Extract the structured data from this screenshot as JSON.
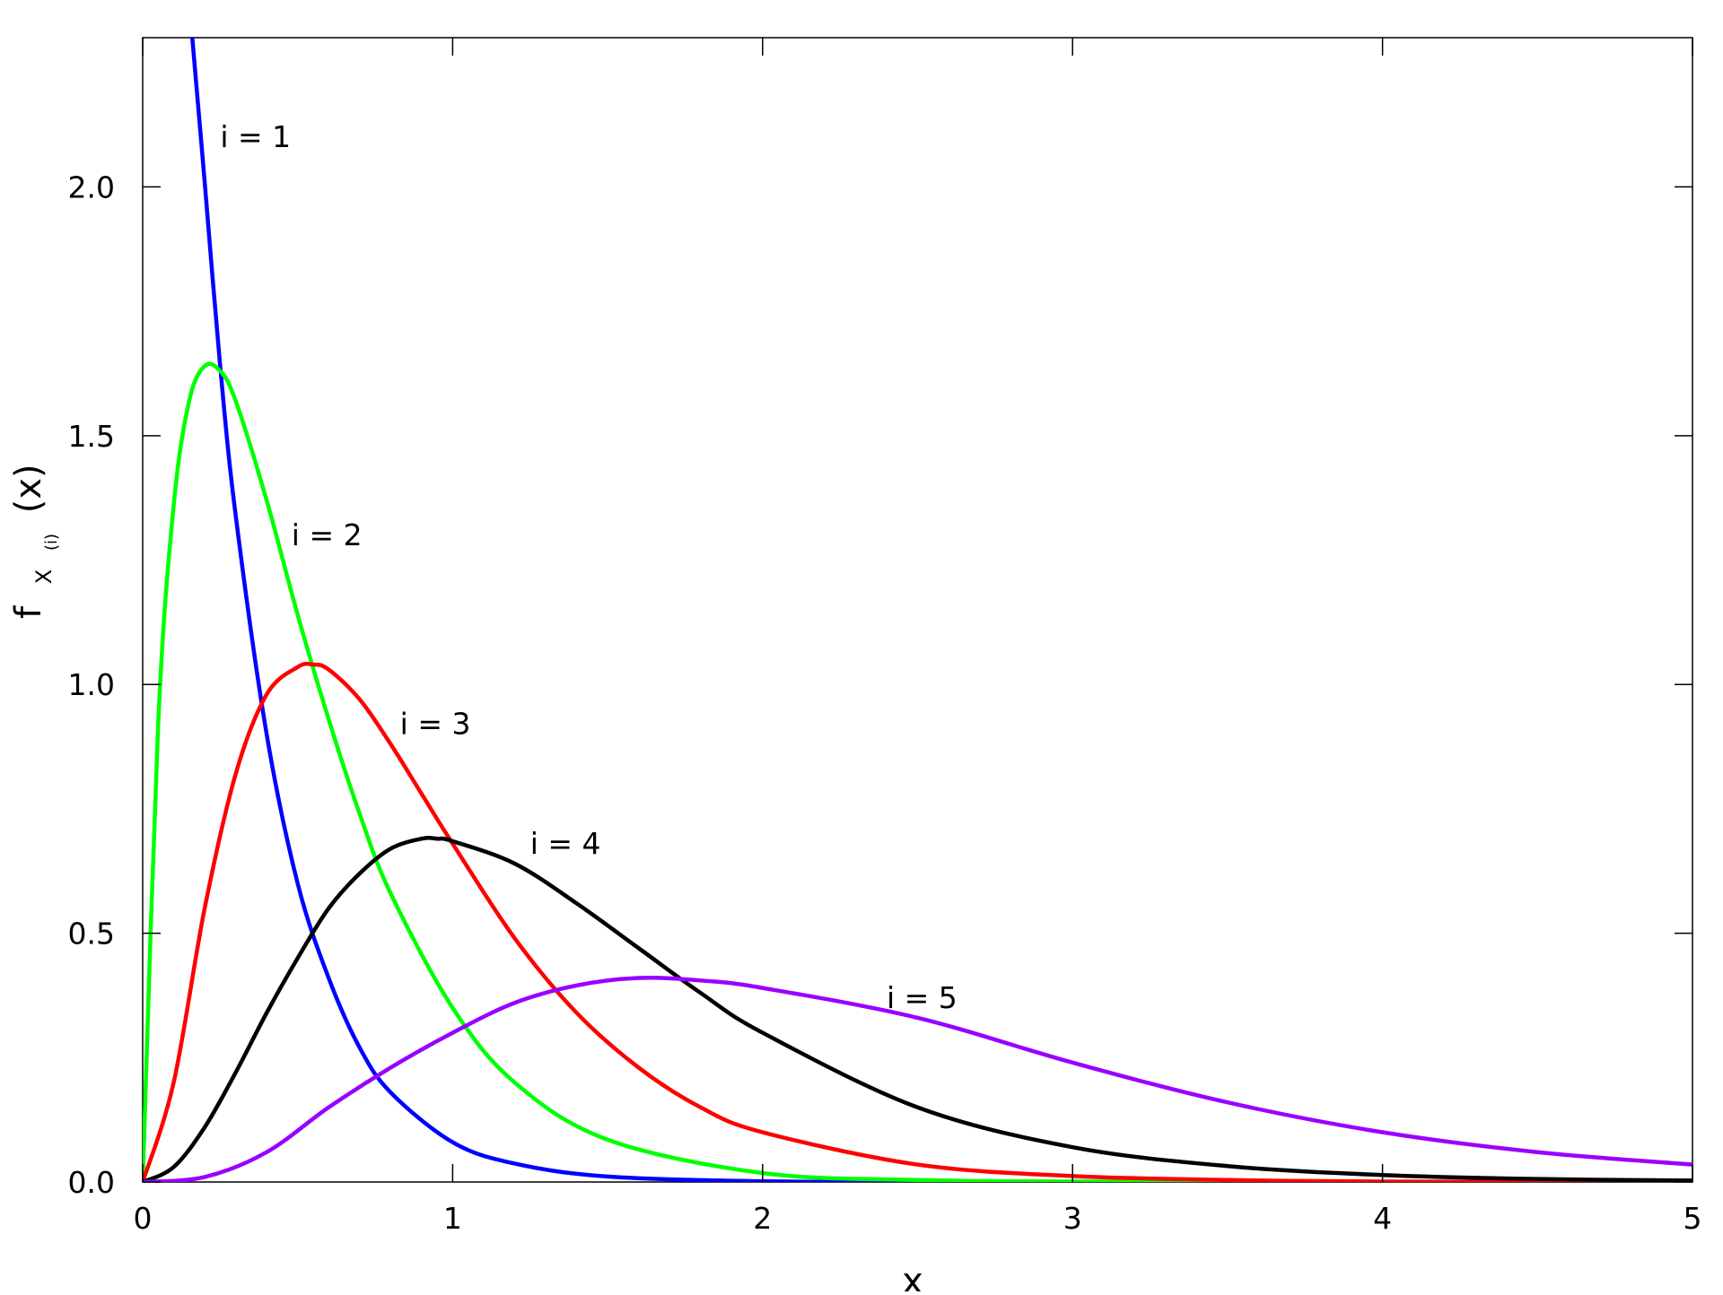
{
  "chart_data": {
    "type": "line",
    "title": "",
    "xlabel": "x",
    "ylabel": {
      "base": "f",
      "sub_var": "X",
      "sub_index": "(i)",
      "arg": "(x)"
    },
    "xlim": [
      0,
      5
    ],
    "ylim": [
      0,
      2.3
    ],
    "x_ticks": [
      0,
      1,
      2,
      3,
      4,
      5
    ],
    "x_tick_labels": [
      "0",
      "1",
      "2",
      "3",
      "4",
      "5"
    ],
    "y_ticks": [
      0,
      0.5,
      1,
      1.5,
      2
    ],
    "y_tick_labels": [
      "0.0",
      "0.5",
      "1.0",
      "1.5",
      "2.0"
    ],
    "grid": false,
    "legend": "inline labels next to curves",
    "x": [
      0,
      0.1,
      0.2,
      0.3,
      0.5,
      0.7,
      0.9,
      1.0,
      1.2,
      1.5,
      2.0,
      2.5,
      3.0,
      3.5,
      4.0,
      4.5,
      5.0
    ],
    "series": [
      {
        "name": "i = 1",
        "color": "#0000ff",
        "x": [
          0.16,
          0.2,
          0.25,
          0.3,
          0.4,
          0.5,
          0.6,
          0.7,
          0.8,
          1.0,
          1.2,
          1.5,
          2.0,
          2.5,
          3.0,
          4.0,
          5.0
        ],
        "values": [
          2.3,
          2.01,
          1.64,
          1.34,
          0.9,
          0.6,
          0.41,
          0.27,
          0.18,
          0.08,
          0.037,
          0.011,
          0.0015,
          0.0002,
          0.0,
          0.0,
          0.0
        ]
      },
      {
        "name": "i = 2",
        "color": "#00ff00",
        "x": [
          0,
          0.05,
          0.1,
          0.15,
          0.2,
          0.25,
          0.3,
          0.4,
          0.5,
          0.6,
          0.7,
          0.8,
          1.0,
          1.2,
          1.5,
          2.0,
          2.5,
          3.0,
          4.0,
          5.0
        ],
        "values": [
          0,
          0.92,
          1.36,
          1.57,
          1.64,
          1.63,
          1.57,
          1.37,
          1.14,
          0.93,
          0.74,
          0.58,
          0.35,
          0.2,
          0.085,
          0.018,
          0.004,
          0.001,
          0.0,
          0.0
        ]
      },
      {
        "name": "i = 3",
        "color": "#ff0000",
        "x": [
          0,
          0.1,
          0.2,
          0.3,
          0.4,
          0.5,
          0.55,
          0.6,
          0.7,
          0.8,
          0.9,
          1.0,
          1.2,
          1.4,
          1.6,
          1.8,
          2.0,
          2.5,
          3.0,
          3.5,
          4.0,
          5.0
        ],
        "values": [
          0,
          0.2,
          0.55,
          0.82,
          0.98,
          1.035,
          1.04,
          1.03,
          0.97,
          0.88,
          0.78,
          0.68,
          0.49,
          0.34,
          0.23,
          0.15,
          0.1,
          0.035,
          0.012,
          0.004,
          0.001,
          0.0
        ]
      },
      {
        "name": "i = 4",
        "color": "#000000",
        "x": [
          0,
          0.1,
          0.2,
          0.3,
          0.4,
          0.5,
          0.6,
          0.7,
          0.8,
          0.9,
          0.95,
          1.0,
          1.2,
          1.4,
          1.6,
          1.8,
          2.0,
          2.5,
          3.0,
          3.5,
          4.0,
          4.5,
          5.0
        ],
        "values": [
          0,
          0.03,
          0.11,
          0.22,
          0.34,
          0.45,
          0.55,
          0.62,
          0.67,
          0.69,
          0.69,
          0.685,
          0.64,
          0.56,
          0.47,
          0.38,
          0.3,
          0.15,
          0.07,
          0.032,
          0.014,
          0.006,
          0.003
        ]
      },
      {
        "name": "i = 5",
        "color": "#9900ff",
        "x": [
          0,
          0.2,
          0.4,
          0.6,
          0.8,
          1.0,
          1.2,
          1.4,
          1.6,
          1.8,
          2.0,
          2.5,
          3.0,
          3.5,
          4.0,
          4.5,
          5.0
        ],
        "values": [
          0,
          0.01,
          0.06,
          0.15,
          0.23,
          0.3,
          0.36,
          0.395,
          0.41,
          0.405,
          0.39,
          0.33,
          0.24,
          0.16,
          0.1,
          0.06,
          0.035
        ]
      }
    ],
    "annotations": [
      {
        "text": "i = 1",
        "x": 0.25,
        "y": 2.08
      },
      {
        "text": "i = 2",
        "x": 0.48,
        "y": 1.28
      },
      {
        "text": "i = 3",
        "x": 0.83,
        "y": 0.9
      },
      {
        "text": "i = 4",
        "x": 1.25,
        "y": 0.66
      },
      {
        "text": "i = 5",
        "x": 2.4,
        "y": 0.35
      }
    ]
  }
}
